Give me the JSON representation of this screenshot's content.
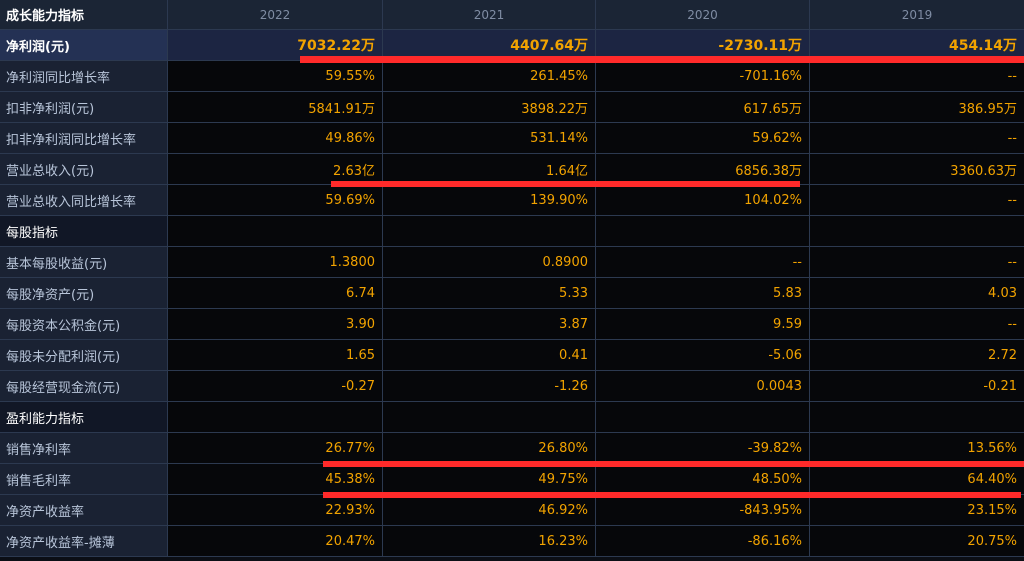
{
  "table": {
    "header": {
      "title": "成长能力指标",
      "years": [
        "2022",
        "2021",
        "2020",
        "2019"
      ]
    },
    "rows": [
      {
        "label": "净利润(元)",
        "values": [
          "7032.22万",
          "4407.64万",
          "-2730.11万",
          "454.14万"
        ],
        "type": "highlight"
      },
      {
        "label": "净利润同比增长率",
        "values": [
          "59.55%",
          "261.45%",
          "-701.16%",
          "--"
        ],
        "type": "data"
      },
      {
        "label": "扣非净利润(元)",
        "values": [
          "5841.91万",
          "3898.22万",
          "617.65万",
          "386.95万"
        ],
        "type": "data"
      },
      {
        "label": "扣非净利润同比增长率",
        "values": [
          "49.86%",
          "531.14%",
          "59.62%",
          "--"
        ],
        "type": "data"
      },
      {
        "label": "营业总收入(元)",
        "values": [
          "2.63亿",
          "1.64亿",
          "6856.38万",
          "3360.63万"
        ],
        "type": "data"
      },
      {
        "label": "营业总收入同比增长率",
        "values": [
          "59.69%",
          "139.90%",
          "104.02%",
          "--"
        ],
        "type": "data"
      },
      {
        "label": "每股指标",
        "values": [
          "",
          "",
          "",
          ""
        ],
        "type": "section"
      },
      {
        "label": "基本每股收益(元)",
        "values": [
          "1.3800",
          "0.8900",
          "--",
          "--"
        ],
        "type": "data"
      },
      {
        "label": "每股净资产(元)",
        "values": [
          "6.74",
          "5.33",
          "5.83",
          "4.03"
        ],
        "type": "data"
      },
      {
        "label": "每股资本公积金(元)",
        "values": [
          "3.90",
          "3.87",
          "9.59",
          "--"
        ],
        "type": "data"
      },
      {
        "label": "每股未分配利润(元)",
        "values": [
          "1.65",
          "0.41",
          "-5.06",
          "2.72"
        ],
        "type": "data"
      },
      {
        "label": "每股经营现金流(元)",
        "values": [
          "-0.27",
          "-1.26",
          "0.0043",
          "-0.21"
        ],
        "type": "data"
      },
      {
        "label": "盈利能力指标",
        "values": [
          "",
          "",
          "",
          ""
        ],
        "type": "section"
      },
      {
        "label": "销售净利率",
        "values": [
          "26.77%",
          "26.80%",
          "-39.82%",
          "13.56%"
        ],
        "type": "data"
      },
      {
        "label": "销售毛利率",
        "values": [
          "45.38%",
          "49.75%",
          "48.50%",
          "64.40%"
        ],
        "type": "data"
      },
      {
        "label": "净资产收益率",
        "values": [
          "22.93%",
          "46.92%",
          "-843.95%",
          "23.15%"
        ],
        "type": "data"
      },
      {
        "label": "净资产收益率-摊薄",
        "values": [
          "20.47%",
          "16.23%",
          "-86.16%",
          "20.75%"
        ],
        "type": "data"
      }
    ]
  },
  "colors": {
    "value_text": "#f2a300",
    "label_text": "#b8c5d9",
    "annotation": "#ff2a2a",
    "background": "#0b0e15"
  }
}
